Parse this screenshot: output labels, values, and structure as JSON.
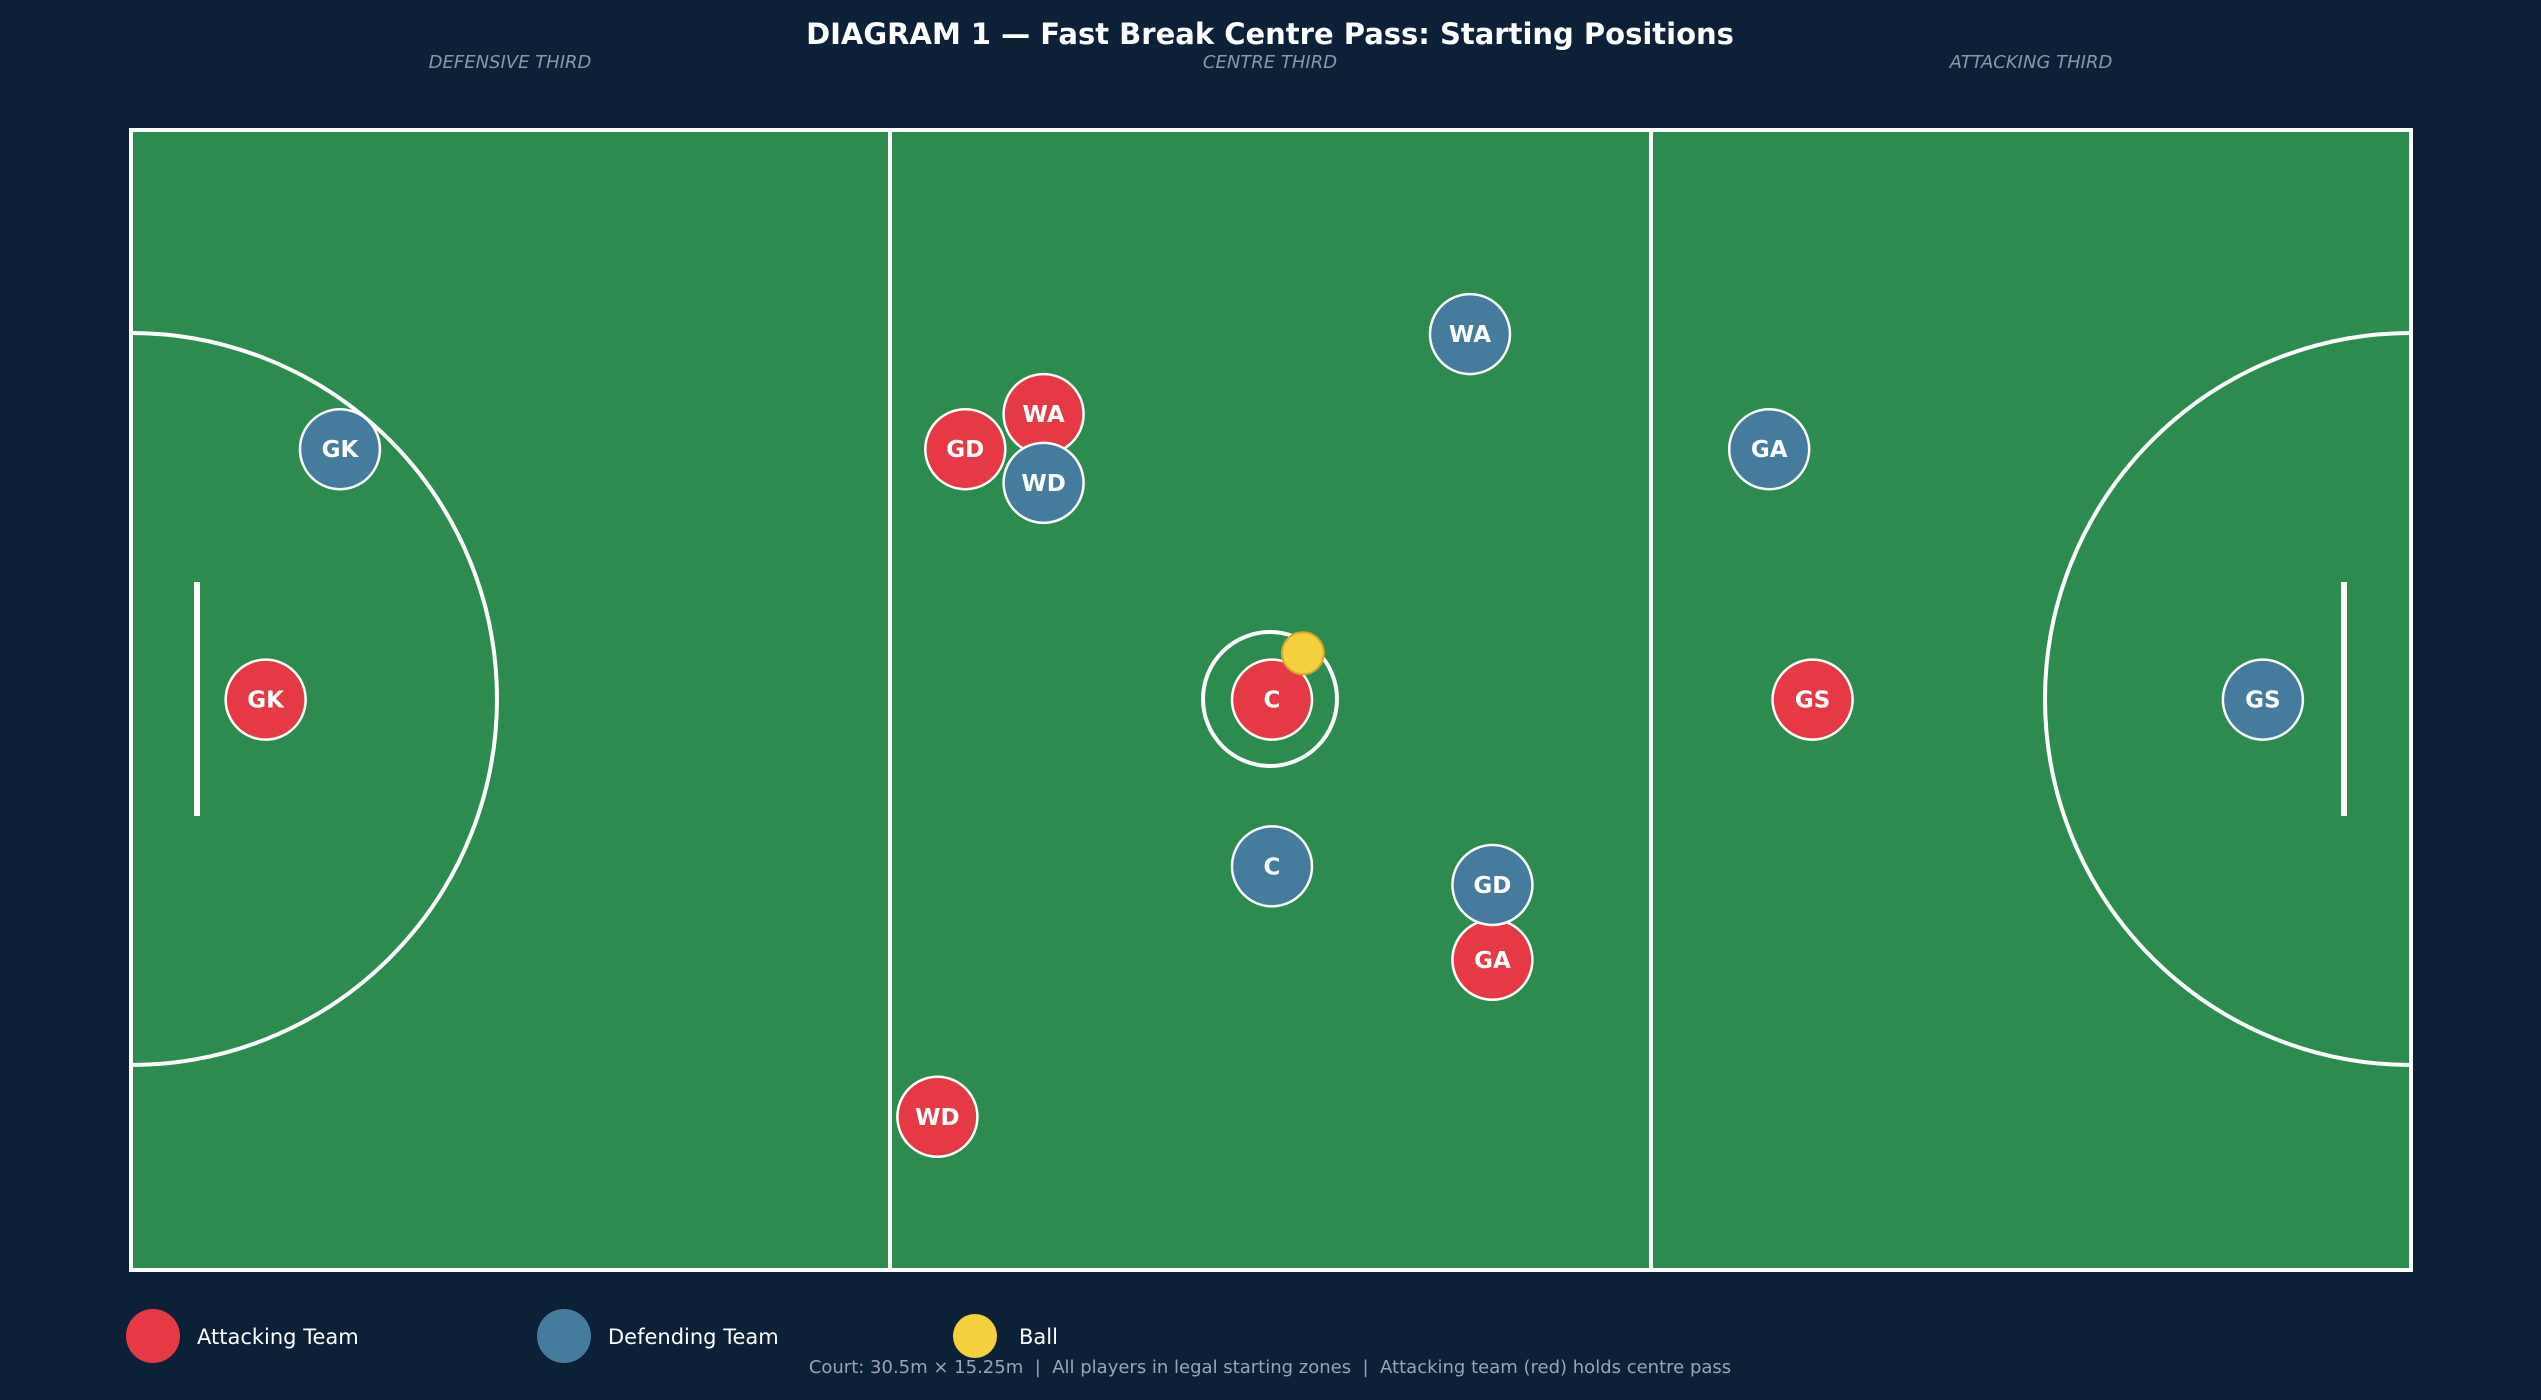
{
  "title": "DIAGRAM 1 — Fast Break Centre Pass: Starting Positions",
  "zones": [
    "DEFENSIVE THIRD",
    "CENTRE THIRD",
    "ATTACKING THIRD"
  ],
  "colors": {
    "background": "#0c2037",
    "court": "#2e8b50",
    "lines": "#ffffff",
    "attacking": "#e63946",
    "defending": "#457b9d",
    "ball": "#f4d03f"
  },
  "court": {
    "length_m": 30.5,
    "width_m": 15.25
  },
  "players": [
    {
      "team": "attacking",
      "label": "GK",
      "x": 2.7,
      "y": 7.62
    },
    {
      "team": "attacking",
      "label": "GD",
      "x": 16.73,
      "y": 4.27
    },
    {
      "team": "attacking",
      "label": "WA",
      "x": 18.3,
      "y": 3.8
    },
    {
      "team": "attacking",
      "label": "C",
      "x": 22.88,
      "y": 7.62
    },
    {
      "team": "attacking",
      "label": "GA",
      "x": 27.3,
      "y": 11.1
    },
    {
      "team": "attacking",
      "label": "WD",
      "x": 16.17,
      "y": 13.2
    },
    {
      "team": "attacking",
      "label": "GS",
      "x": 33.72,
      "y": 7.62
    },
    {
      "team": "defending",
      "label": "GK",
      "x": 4.19,
      "y": 4.27
    },
    {
      "team": "defending",
      "label": "WD",
      "x": 18.3,
      "y": 4.72
    },
    {
      "team": "defending",
      "label": "WA",
      "x": 26.85,
      "y": 2.73
    },
    {
      "team": "defending",
      "label": "C",
      "x": 22.88,
      "y": 9.85
    },
    {
      "team": "defending",
      "label": "GD",
      "x": 27.3,
      "y": 10.1
    },
    {
      "team": "defending",
      "label": "GA",
      "x": 32.85,
      "y": 4.27
    },
    {
      "team": "defending",
      "label": "GS",
      "x": 42.75,
      "y": 7.62
    }
  ],
  "ball": {
    "x": 23.5,
    "y": 7.0
  },
  "legend": [
    {
      "label": "Attacking Team",
      "color": "#e63946"
    },
    {
      "label": "Defending Team",
      "color": "#457b9d"
    },
    {
      "label": "Ball",
      "color": "#f4d03f"
    }
  ],
  "footer": "Court: 30.5m × 15.25m  |  All players in legal starting zones  |  Attacking team (red) holds centre pass"
}
